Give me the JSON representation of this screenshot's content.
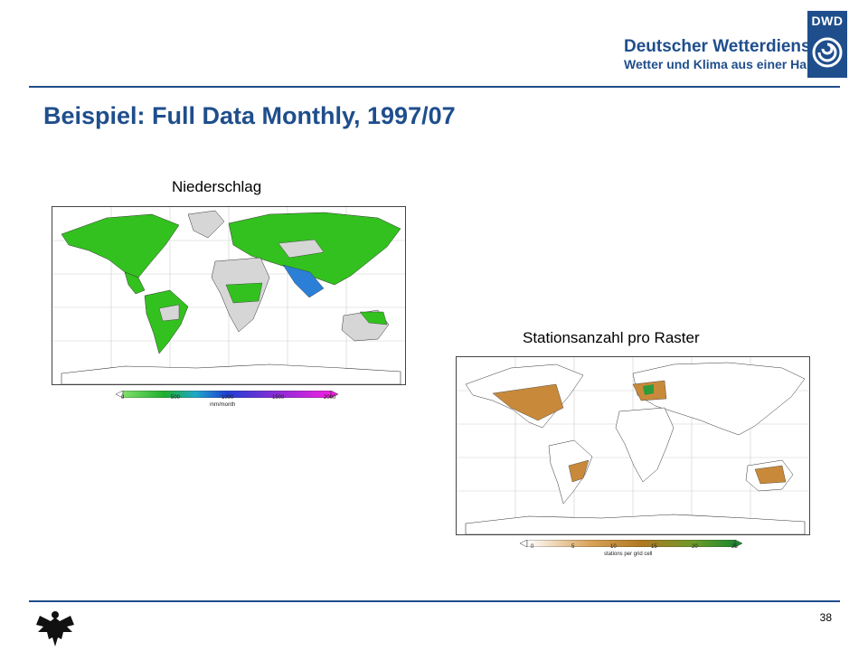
{
  "header": {
    "brand_name": "Deutscher Wetterdienst",
    "brand_tagline": "Wetter und Klima aus einer Hand",
    "logo_text": "DWD"
  },
  "slide": {
    "title": "Beispiel: Full Data Monthly, 1997/07",
    "page_number": "38"
  },
  "maps": {
    "precipitation": {
      "caption": "Niederschlag",
      "colorbar_ticks": [
        "0",
        "500",
        "1000",
        "1500",
        "2000"
      ],
      "colorbar_unit": "mm/month"
    },
    "stations": {
      "caption": "Stationsanzahl pro Raster",
      "colorbar_ticks": [
        "0",
        "5",
        "10",
        "15",
        "20",
        "25"
      ],
      "colorbar_unit": "stations per grid cell"
    }
  },
  "colors": {
    "brand_blue": "#1f4e8c",
    "precip_land": "#33c11f",
    "precip_dry": "#d6d6d6",
    "station_land": "#c88a3a"
  }
}
